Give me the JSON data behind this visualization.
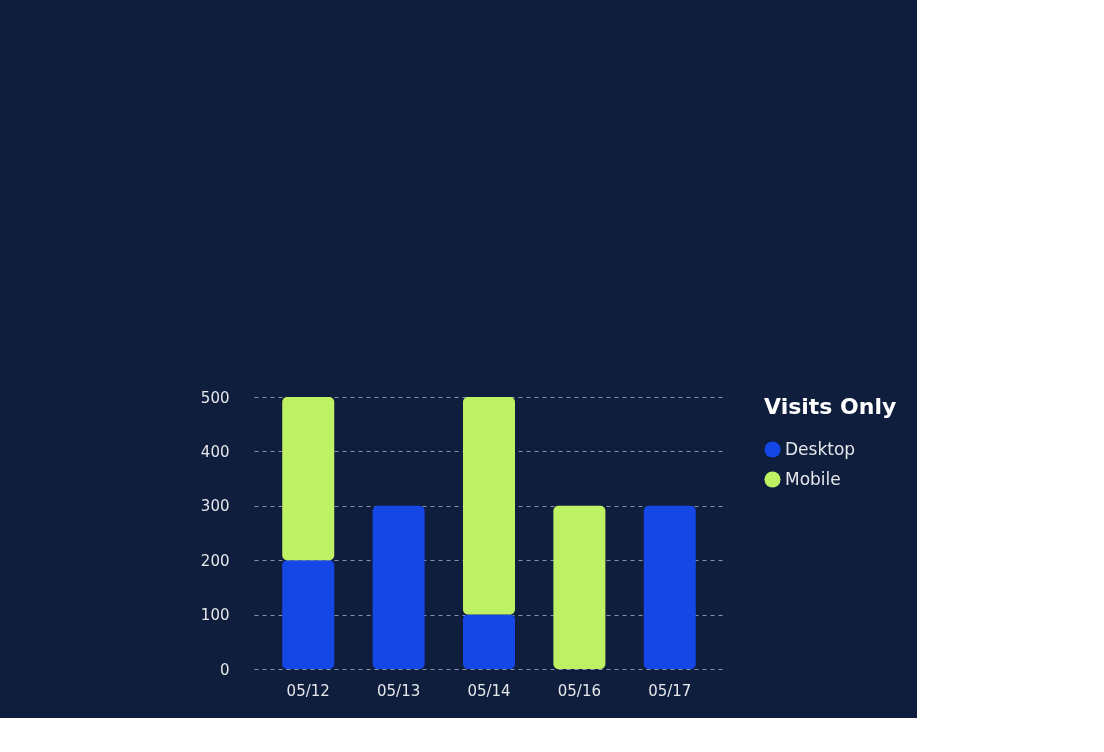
{
  "chart_data": {
    "type": "bar",
    "stacked": true,
    "legend_title": "Visits Only",
    "categories": [
      "05/12",
      "05/13",
      "05/14",
      "05/16",
      "05/17"
    ],
    "series": [
      {
        "name": "Desktop",
        "color": "#1447e6",
        "values": [
          200,
          300,
          100,
          null,
          300
        ]
      },
      {
        "name": "Mobile",
        "color": "#bef264",
        "values": [
          300,
          null,
          400,
          300,
          null
        ]
      }
    ],
    "ylim": [
      0,
      500
    ],
    "yticks": [
      0,
      100,
      200,
      300,
      400,
      500
    ],
    "grid": "y",
    "legend": "top right"
  }
}
